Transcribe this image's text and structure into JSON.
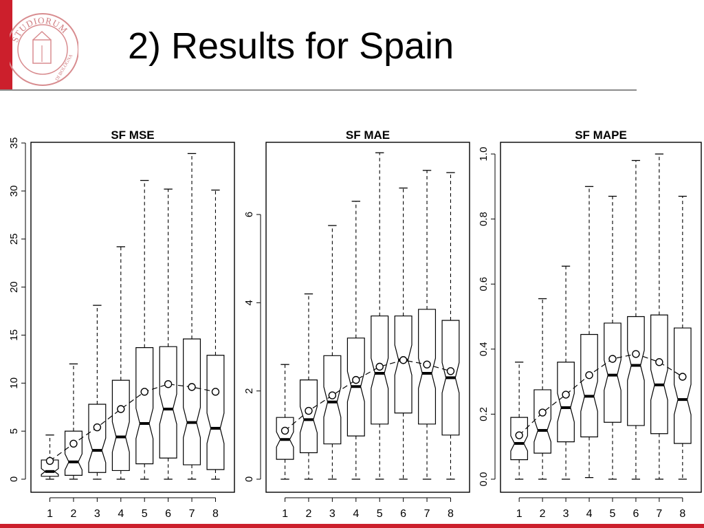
{
  "slide": {
    "title": "2) Results for Spain",
    "accent_color": "#cc1f2c",
    "logo_text": "STUDIORUM",
    "logo_subtext": "DI BOLOGNA"
  },
  "chart_data": [
    {
      "type": "box",
      "title": "SF MSE",
      "xlabel": "",
      "ylabel": "",
      "categories": [
        "1",
        "2",
        "3",
        "4",
        "5",
        "6",
        "7",
        "8"
      ],
      "ylim": [
        0,
        35
      ],
      "yticks": [
        0,
        5,
        10,
        15,
        20,
        25,
        30,
        35
      ],
      "boxes": [
        {
          "min": 0.0,
          "q1": 0.3,
          "median": 0.8,
          "q3": 2.0,
          "max": 4.6,
          "mean": 1.9
        },
        {
          "min": 0.0,
          "q1": 0.4,
          "median": 1.8,
          "q3": 5.0,
          "max": 12.0,
          "mean": 3.7
        },
        {
          "min": 0.0,
          "q1": 0.7,
          "median": 3.0,
          "q3": 7.8,
          "max": 18.1,
          "mean": 5.4
        },
        {
          "min": 0.0,
          "q1": 0.9,
          "median": 4.4,
          "q3": 10.3,
          "max": 24.2,
          "mean": 7.3
        },
        {
          "min": 0.0,
          "q1": 1.6,
          "median": 5.8,
          "q3": 13.7,
          "max": 31.1,
          "mean": 9.1
        },
        {
          "min": 0.0,
          "q1": 2.2,
          "median": 7.3,
          "q3": 13.8,
          "max": 30.2,
          "mean": 9.9
        },
        {
          "min": 0.0,
          "q1": 1.5,
          "median": 5.9,
          "q3": 14.6,
          "max": 33.9,
          "mean": 9.6
        },
        {
          "min": 0.0,
          "q1": 1.0,
          "median": 5.3,
          "q3": 12.9,
          "max": 30.1,
          "mean": 9.1
        }
      ]
    },
    {
      "type": "box",
      "title": "SF MAE",
      "xlabel": "",
      "ylabel": "",
      "categories": [
        "1",
        "2",
        "3",
        "4",
        "5",
        "6",
        "7",
        "8"
      ],
      "ylim": [
        0,
        7.6
      ],
      "yticks": [
        0,
        2,
        4,
        6
      ],
      "boxes": [
        {
          "min": 0.0,
          "q1": 0.45,
          "median": 0.9,
          "q3": 1.4,
          "max": 2.6,
          "mean": 1.1
        },
        {
          "min": 0.0,
          "q1": 0.6,
          "median": 1.35,
          "q3": 2.25,
          "max": 4.2,
          "mean": 1.55
        },
        {
          "min": 0.0,
          "q1": 0.8,
          "median": 1.75,
          "q3": 2.8,
          "max": 5.75,
          "mean": 1.9
        },
        {
          "min": 0.0,
          "q1": 0.98,
          "median": 2.1,
          "q3": 3.2,
          "max": 6.3,
          "mean": 2.25
        },
        {
          "min": 0.0,
          "q1": 1.25,
          "median": 2.4,
          "q3": 3.7,
          "max": 7.4,
          "mean": 2.55
        },
        {
          "min": 0.0,
          "q1": 1.5,
          "median": 2.7,
          "q3": 3.7,
          "max": 6.6,
          "mean": 2.7
        },
        {
          "min": 0.0,
          "q1": 1.25,
          "median": 2.4,
          "q3": 3.85,
          "max": 7.0,
          "mean": 2.6
        },
        {
          "min": 0.0,
          "q1": 1.0,
          "median": 2.3,
          "q3": 3.6,
          "max": 6.95,
          "mean": 2.45
        }
      ]
    },
    {
      "type": "box",
      "title": "SF MAPE",
      "xlabel": "",
      "ylabel": "",
      "categories": [
        "1",
        "2",
        "3",
        "4",
        "5",
        "6",
        "7",
        "8"
      ],
      "ylim": [
        -0.04,
        1.03
      ],
      "yticks": [
        0.0,
        0.2,
        0.4,
        0.6,
        0.8,
        1.0
      ],
      "ytick_labels": [
        "0.0",
        "0.2",
        "0.4",
        "0.6",
        "0.8",
        "1.0"
      ],
      "boxes": [
        {
          "min": 0.0,
          "q1": 0.06,
          "median": 0.11,
          "q3": 0.19,
          "max": 0.36,
          "mean": 0.135
        },
        {
          "min": 0.0,
          "q1": 0.08,
          "median": 0.15,
          "q3": 0.275,
          "max": 0.555,
          "mean": 0.205
        },
        {
          "min": 0.0,
          "q1": 0.115,
          "median": 0.22,
          "q3": 0.36,
          "max": 0.655,
          "mean": 0.26
        },
        {
          "min": 0.005,
          "q1": 0.13,
          "median": 0.255,
          "q3": 0.445,
          "max": 0.9,
          "mean": 0.32
        },
        {
          "min": 0.0,
          "q1": 0.175,
          "median": 0.32,
          "q3": 0.48,
          "max": 0.87,
          "mean": 0.37
        },
        {
          "min": 0.0,
          "q1": 0.165,
          "median": 0.35,
          "q3": 0.5,
          "max": 0.98,
          "mean": 0.385
        },
        {
          "min": 0.0,
          "q1": 0.14,
          "median": 0.29,
          "q3": 0.505,
          "max": 1.0,
          "mean": 0.36
        },
        {
          "min": 0.0,
          "q1": 0.11,
          "median": 0.245,
          "q3": 0.465,
          "max": 0.87,
          "mean": 0.315
        }
      ]
    }
  ]
}
